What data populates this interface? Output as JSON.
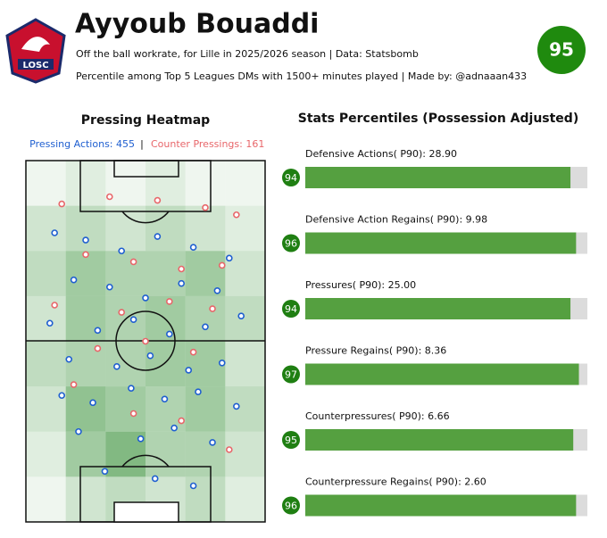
{
  "header": {
    "title": "Ayyoub Bouaddi",
    "subtitle": "Off the ball workrate, for Lille in 2025/2026 season | Data: Statsbomb",
    "note": "Percentile among Top 5 Leagues DMs with 1500+ minutes played | Made by: @adnaaan433",
    "rating": 95,
    "logo_text": "LOSC"
  },
  "chart_data": [
    {
      "type": "heatmap",
      "title": "Pressing Heatmap",
      "legend_separator": "|",
      "xlim": [
        0,
        100
      ],
      "ylim": [
        0,
        100
      ],
      "color": "#2e8b2e",
      "clim": [
        0,
        10
      ],
      "grid_values": [
        [
          1,
          2,
          1,
          2,
          1,
          1
        ],
        [
          3,
          4,
          3,
          4,
          3,
          2
        ],
        [
          4,
          6,
          5,
          5,
          6,
          3
        ],
        [
          3,
          6,
          5,
          6,
          5,
          4
        ],
        [
          4,
          5,
          5,
          6,
          6,
          3
        ],
        [
          3,
          7,
          6,
          5,
          6,
          4
        ],
        [
          2,
          6,
          8,
          5,
          5,
          3
        ],
        [
          1,
          3,
          4,
          3,
          4,
          2
        ]
      ],
      "series": [
        {
          "name": "Pressing Actions: 455",
          "color": "#1f5fd0",
          "x": [
            12,
            25,
            40,
            55,
            70,
            85,
            20,
            35,
            50,
            65,
            80,
            10,
            30,
            45,
            60,
            75,
            90,
            18,
            38,
            52,
            68,
            82,
            15,
            28,
            44,
            58,
            72,
            88,
            22,
            48,
            62,
            78,
            33,
            54,
            70
          ],
          "y": [
            20,
            22,
            25,
            21,
            24,
            27,
            33,
            35,
            38,
            34,
            36,
            45,
            47,
            44,
            48,
            46,
            43,
            55,
            57,
            54,
            58,
            56,
            65,
            67,
            63,
            66,
            64,
            68,
            75,
            77,
            74,
            78,
            86,
            88,
            90
          ]
        },
        {
          "name": "Counter Pressings: 161",
          "color": "#e8666a",
          "x": [
            15,
            35,
            55,
            75,
            88,
            25,
            45,
            65,
            82,
            12,
            40,
            60,
            78,
            30,
            50,
            70,
            20,
            45,
            65,
            85
          ],
          "y": [
            12,
            10,
            11,
            13,
            15,
            26,
            28,
            30,
            29,
            40,
            42,
            39,
            41,
            52,
            50,
            53,
            62,
            70,
            72,
            80
          ]
        }
      ]
    },
    {
      "type": "bar",
      "title": "Stats Percentiles (Possession Adjusted)",
      "categories": [
        "Defensive Actions( P90): 28.90",
        "Defensive Action Regains( P90): 9.98",
        "Pressures( P90): 25.00",
        "Pressure Regains( P90): 8.36",
        "Counterpressures( P90): 6.66",
        "Counterpressure Regains( P90): 2.60"
      ],
      "values": [
        94,
        96,
        94,
        97,
        95,
        96
      ],
      "xlim": [
        0,
        100
      ],
      "color": "#55a040",
      "badge_color": "#1f7f12"
    }
  ]
}
